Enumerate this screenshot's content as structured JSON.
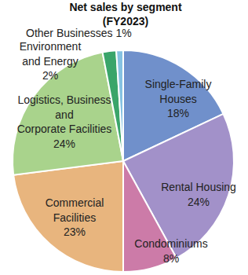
{
  "chart_data": {
    "type": "pie",
    "title": "Net sales by segment\n(FY2023)",
    "categories": [
      "Single-Family\nHouses",
      "Rental Housing",
      "Condominiums",
      "Commercial\nFacilities",
      "Logistics, Business\nand\nCorporate Facilities",
      "Environment\nand Energy",
      "Other Businesses"
    ],
    "values": [
      18,
      24,
      8,
      23,
      24,
      2,
      1
    ],
    "value_labels": [
      "18%",
      "24%",
      "8%",
      "23%",
      "24%",
      "2%",
      "1%"
    ],
    "colors": [
      "#7090cb",
      "#a291c9",
      "#cc7ba8",
      "#e8b57e",
      "#a9d38c",
      "#3aa56a",
      "#86c2e2"
    ],
    "data_labels": true
  }
}
